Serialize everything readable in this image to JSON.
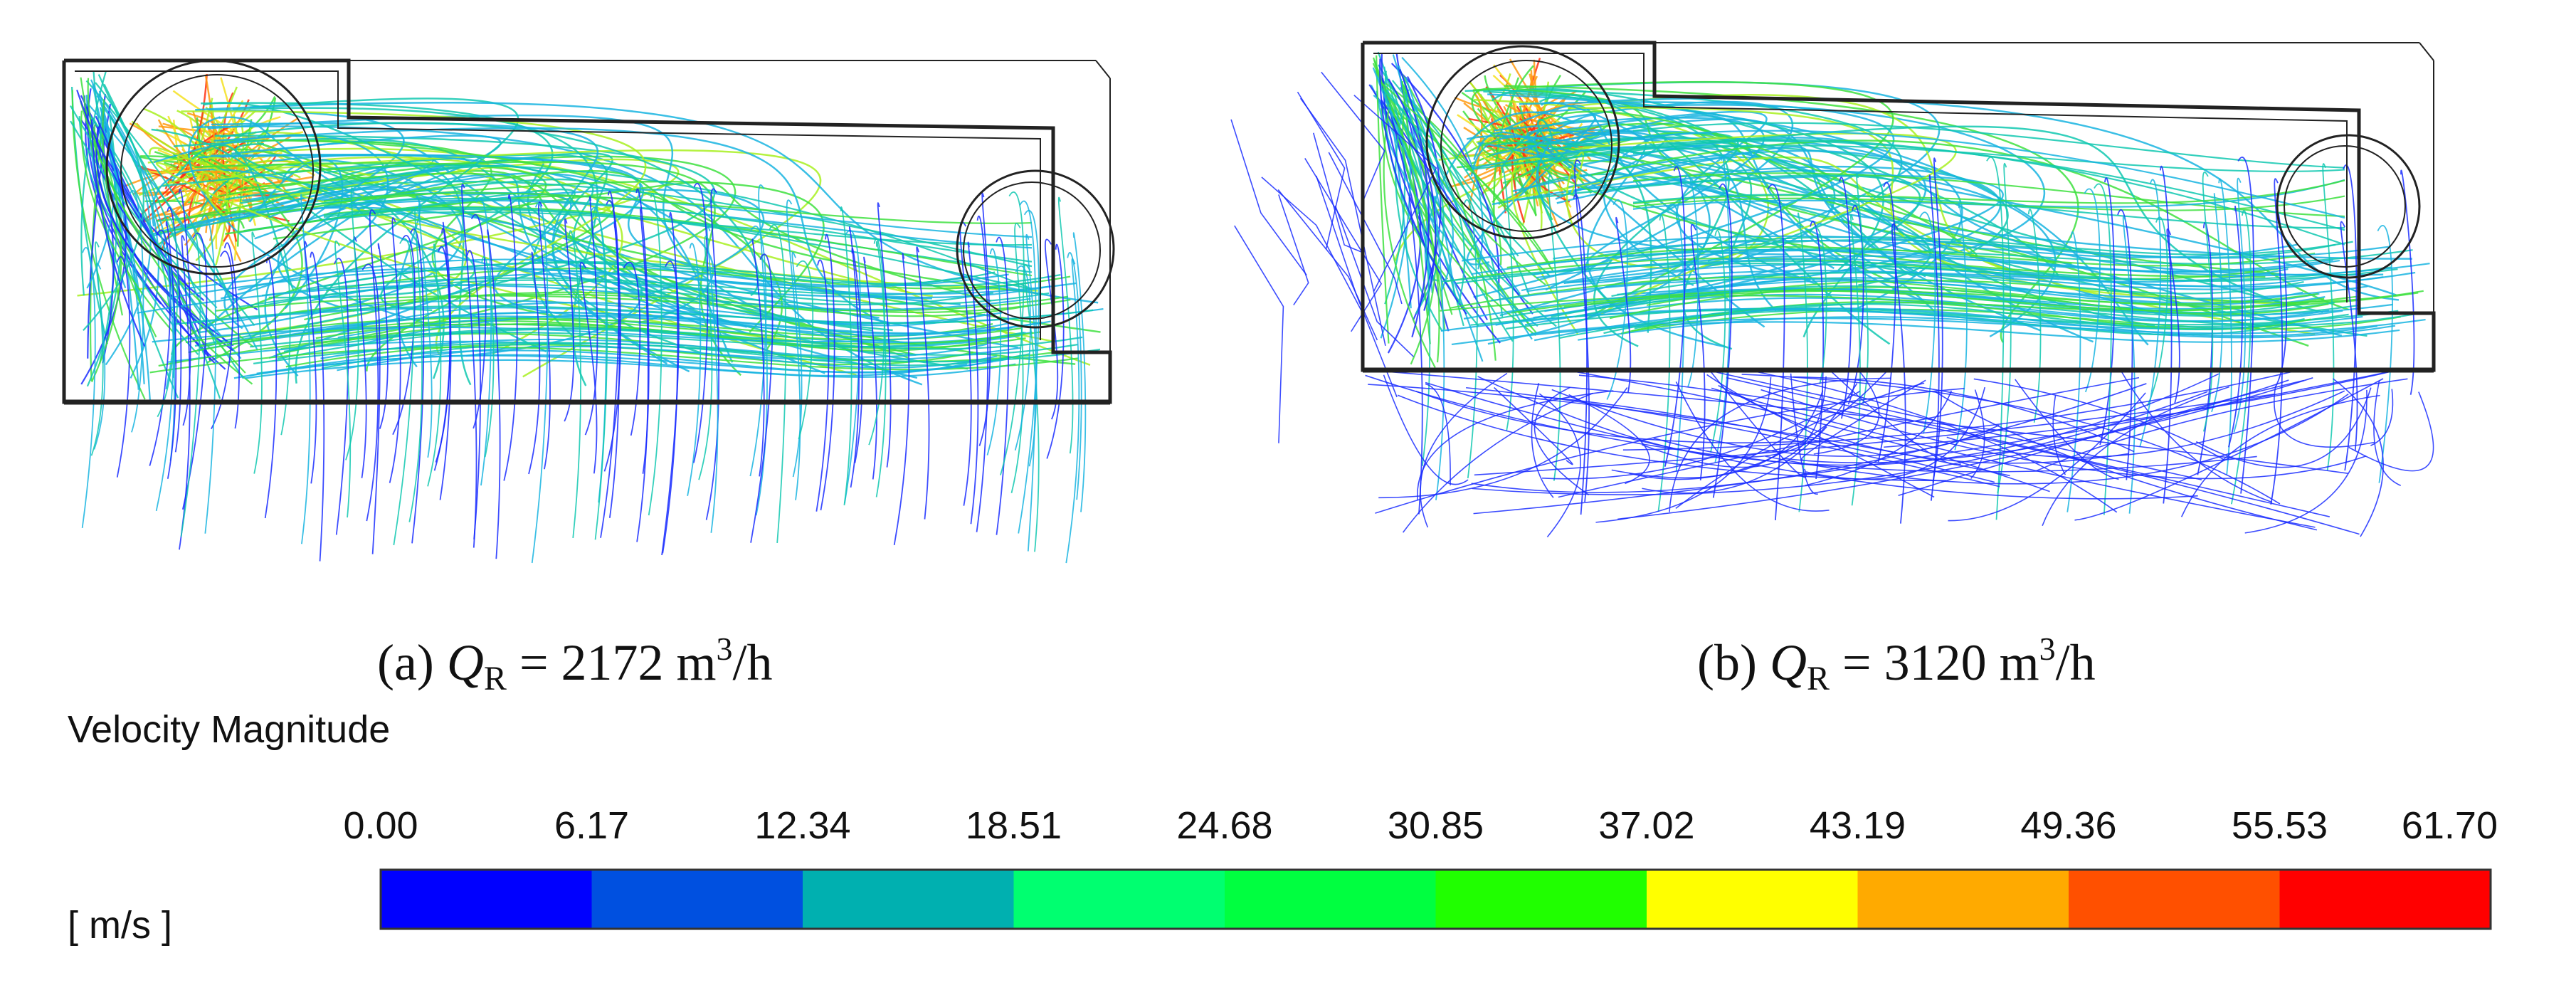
{
  "panels": [
    {
      "id": "a",
      "caption": {
        "prefix": "(a)  ",
        "symbol": "Q",
        "subscript": "R",
        "equals": " = 2172 m",
        "sup": "3",
        "unit": "/h"
      }
    },
    {
      "id": "b",
      "caption": {
        "prefix": "(b)  ",
        "symbol": "Q",
        "subscript": "R",
        "equals": " = 3120 m",
        "sup": "3",
        "unit": "/h"
      }
    }
  ],
  "legend": {
    "title": "Velocity Magnitude",
    "unit": "[ m/s ]",
    "ticks": [
      "0.00",
      "6.17",
      "12.34",
      "18.51",
      "24.68",
      "30.85",
      "37.02",
      "43.19",
      "49.36",
      "55.53",
      "61.70"
    ],
    "colors": [
      "#0000ff",
      "#0050e0",
      "#00b0b0",
      "#00ff70",
      "#00ff40",
      "#20ff00",
      "#ffff00",
      "#ffaa00",
      "#ff5000",
      "#ff0000"
    ]
  }
}
